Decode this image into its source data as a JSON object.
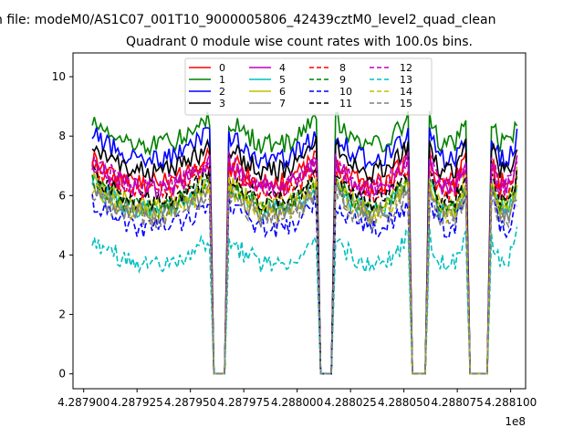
{
  "figure": {
    "suptitle": "n file: modeM0/AS1C07_001T10_9000005806_42439cztM0_level2_quad_clean",
    "background": "#ffffff"
  },
  "chart_data": {
    "type": "line",
    "title": "Quadrant 0 module wise count rates with 100.0s bins.",
    "xlabel": "",
    "ylabel": "",
    "x_offset_label": "1e8",
    "xlim": [
      428789500,
      428810700
    ],
    "ylim": [
      -0.5,
      10.8
    ],
    "x_ticks": [
      428790000,
      428792500,
      428795000,
      428797500,
      428800000,
      428802500,
      428805000,
      428807500,
      428810000
    ],
    "x_tick_labels": [
      "4.287900",
      "4.287925",
      "4.287950",
      "4.287975",
      "4.288000",
      "4.288025",
      "4.288050",
      "4.288075",
      "4.288100"
    ],
    "y_ticks": [
      0,
      2,
      4,
      6,
      8,
      10
    ],
    "y_tick_labels": [
      "0",
      "2",
      "4",
      "6",
      "8",
      "10"
    ],
    "grid": false,
    "legend_location": "upper center",
    "legend_columns": 4,
    "bin_size": 100,
    "segments": [
      {
        "start": 428790400,
        "end": 428795900
      },
      {
        "start": 428796800,
        "end": 428800900
      },
      {
        "start": 428801800,
        "end": 428805200
      },
      {
        "start": 428806200,
        "end": 428807900
      },
      {
        "start": 428809100,
        "end": 428810300
      }
    ],
    "gaps": [
      {
        "from": 428795900,
        "to": 428796800
      },
      {
        "from": 428800900,
        "to": 428801800
      },
      {
        "from": 428805200,
        "to": 428806200
      },
      {
        "from": 428807900,
        "to": 428809100
      }
    ],
    "series": [
      {
        "name": "0",
        "color": "#ff0000",
        "style": "solid",
        "level": 7.0
      },
      {
        "name": "1",
        "color": "#008000",
        "style": "solid",
        "level": 8.3
      },
      {
        "name": "2",
        "color": "#0000ff",
        "style": "solid",
        "level": 7.8
      },
      {
        "name": "3",
        "color": "#000000",
        "style": "solid",
        "level": 7.4
      },
      {
        "name": "4",
        "color": "#bf00bf",
        "style": "solid",
        "level": 6.8
      },
      {
        "name": "5",
        "color": "#00bfbf",
        "style": "solid",
        "level": 6.1
      },
      {
        "name": "6",
        "color": "#bfbf00",
        "style": "solid",
        "level": 6.3
      },
      {
        "name": "7",
        "color": "#808080",
        "style": "solid",
        "level": 6.0
      },
      {
        "name": "8",
        "color": "#ff0000",
        "style": "dashed",
        "level": 6.7
      },
      {
        "name": "9",
        "color": "#008000",
        "style": "dashed",
        "level": 6.2
      },
      {
        "name": "10",
        "color": "#0000ff",
        "style": "dashed",
        "level": 5.5
      },
      {
        "name": "11",
        "color": "#000000",
        "style": "dashed",
        "level": 6.4
      },
      {
        "name": "12",
        "color": "#bf00bf",
        "style": "dashed",
        "level": 6.9
      },
      {
        "name": "13",
        "color": "#00bfbf",
        "style": "dashed",
        "level": 4.3
      },
      {
        "name": "14",
        "color": "#bfbf00",
        "style": "dashed",
        "level": 6.0
      },
      {
        "name": "15",
        "color": "#808080",
        "style": "dashed",
        "level": 5.8
      }
    ]
  }
}
